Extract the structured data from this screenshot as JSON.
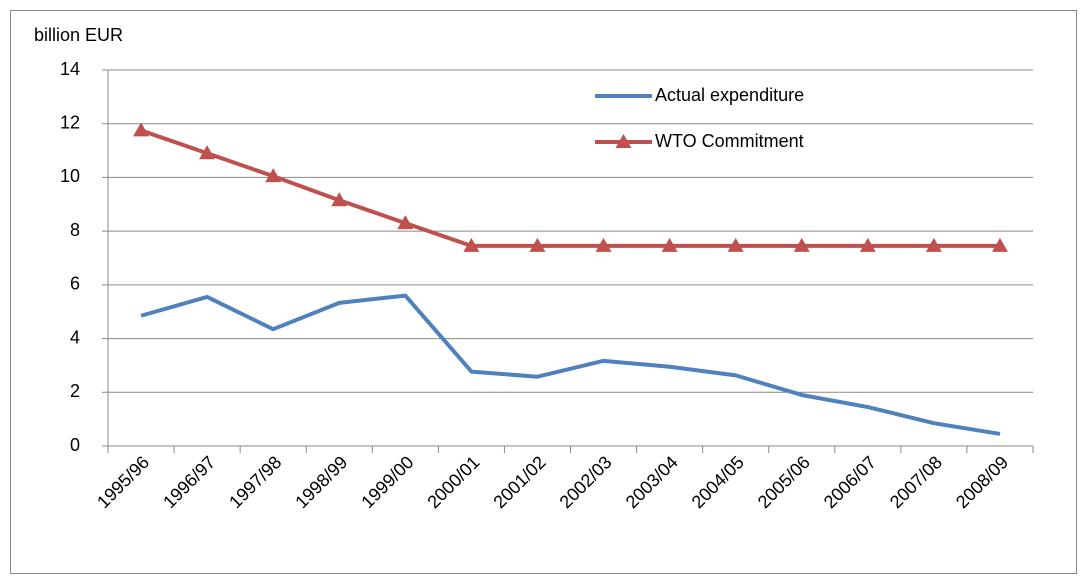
{
  "chart_data": {
    "type": "line",
    "ylabel": "billion EUR",
    "categories": [
      "1995/96",
      "1996/97",
      "1997/98",
      "1998/99",
      "1999/00",
      "2000/01",
      "2001/02",
      "2002/03",
      "2003/04",
      "2004/05",
      "2005/06",
      "2006/07",
      "2007/08",
      "2008/09"
    ],
    "series": [
      {
        "name": "Actual expenditure",
        "color": "#4f81bd",
        "marker": "none",
        "values": [
          4.85,
          5.55,
          4.35,
          5.33,
          5.6,
          2.77,
          2.58,
          3.17,
          2.95,
          2.63,
          1.9,
          1.45,
          0.85,
          0.45
        ]
      },
      {
        "name": "WTO Commitment",
        "color": "#c0504d",
        "marker": "triangle",
        "values": [
          11.75,
          10.9,
          10.05,
          9.15,
          8.3,
          7.45,
          7.45,
          7.45,
          7.45,
          7.45,
          7.45,
          7.45,
          7.45,
          7.45
        ]
      }
    ],
    "ylim": [
      0,
      14
    ],
    "yticks": [
      0,
      2,
      4,
      6,
      8,
      10,
      12,
      14
    ],
    "grid": true
  }
}
